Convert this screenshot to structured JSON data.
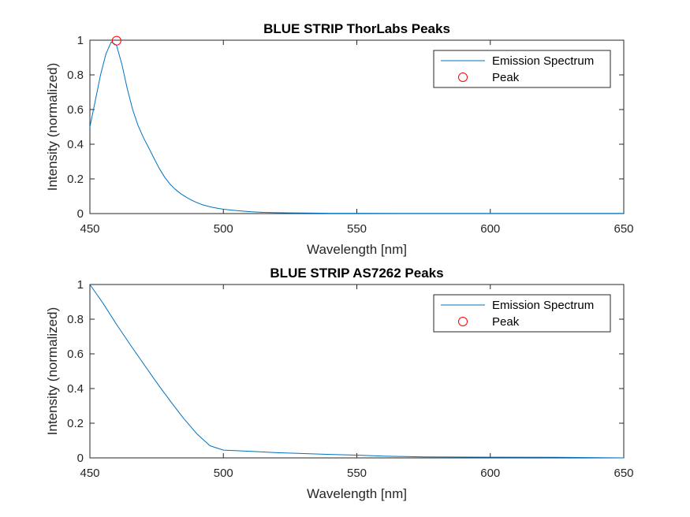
{
  "chart_data": [
    {
      "type": "line",
      "title": "BLUE STRIP ThorLabs Peaks",
      "xlabel": "Wavelength [nm]",
      "ylabel": "Intensity (normalized)",
      "xlim": [
        450,
        650
      ],
      "ylim": [
        0,
        1
      ],
      "xticks": [
        "450",
        "500",
        "550",
        "600",
        "650"
      ],
      "yticks": [
        "0",
        "0.2",
        "0.4",
        "0.6",
        "0.8",
        "1"
      ],
      "grid": false,
      "legend_position": "top-right",
      "series": [
        {
          "name": "Emission Spectrum",
          "color": "#0072BD",
          "x": [
            450,
            452,
            454,
            456,
            458,
            460,
            462,
            464,
            466,
            468,
            470,
            472,
            474,
            476,
            478,
            480,
            482,
            484,
            486,
            488,
            490,
            492,
            494,
            496,
            498,
            500,
            505,
            510,
            515,
            520,
            525,
            530,
            540,
            550,
            575,
            600,
            625,
            650
          ],
          "y": [
            0.5,
            0.65,
            0.8,
            0.92,
            0.99,
            0.97,
            0.86,
            0.72,
            0.6,
            0.51,
            0.44,
            0.38,
            0.32,
            0.26,
            0.21,
            0.17,
            0.14,
            0.115,
            0.095,
            0.078,
            0.064,
            0.052,
            0.043,
            0.036,
            0.03,
            0.025,
            0.017,
            0.011,
            0.007,
            0.005,
            0.004,
            0.003,
            0.002,
            0.002,
            0.001,
            0.001,
            0.001,
            0.001
          ]
        },
        {
          "name": "Peak",
          "color": "#FF0000",
          "marker": "circle",
          "x": [
            460
          ],
          "y": [
            0.997
          ]
        }
      ]
    },
    {
      "type": "line",
      "title": "BLUE STRIP AS7262 Peaks",
      "xlabel": "Wavelength [nm]",
      "ylabel": "Intensity (normalized)",
      "xlim": [
        450,
        650
      ],
      "ylim": [
        0,
        1
      ],
      "xticks": [
        "450",
        "500",
        "550",
        "600",
        "650"
      ],
      "yticks": [
        "0",
        "0.2",
        "0.4",
        "0.6",
        "0.8",
        "1"
      ],
      "grid": false,
      "legend_position": "top-right",
      "series": [
        {
          "name": "Emission Spectrum",
          "color": "#0072BD",
          "x": [
            450,
            455,
            460,
            465,
            470,
            475,
            480,
            485,
            490,
            495,
            500,
            510,
            520,
            530,
            540,
            550,
            560,
            575,
            600,
            625,
            650
          ],
          "y": [
            1.0,
            0.89,
            0.77,
            0.655,
            0.545,
            0.435,
            0.33,
            0.23,
            0.14,
            0.07,
            0.045,
            0.038,
            0.03,
            0.025,
            0.02,
            0.016,
            0.01,
            0.006,
            0.004,
            0.003,
            0.0
          ]
        },
        {
          "name": "Peak",
          "color": "#FF0000",
          "marker": "circle",
          "x": [],
          "y": []
        }
      ]
    }
  ]
}
